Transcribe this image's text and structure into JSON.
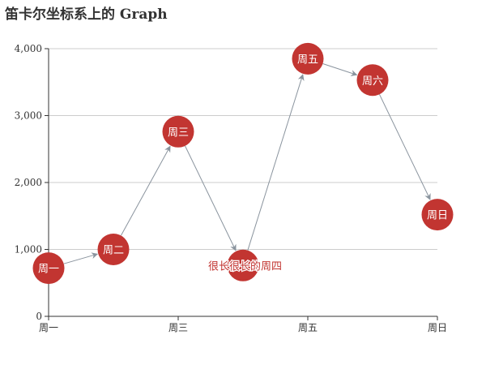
{
  "chart_data": {
    "type": "graph",
    "title": "笛卡尔坐标系上的 Graph",
    "categories": [
      "周一",
      "周二",
      "周三",
      "周四",
      "周五",
      "周六",
      "周日"
    ],
    "x_tick_labels": [
      "周一",
      "周三",
      "周五",
      "周日"
    ],
    "y_ticks": [
      0,
      1000,
      2000,
      3000,
      4000
    ],
    "y_tick_labels": [
      "0",
      "1,000",
      "2,000",
      "3,000",
      "4,000"
    ],
    "ylim": [
      0,
      4000
    ],
    "grid": true,
    "nodes": [
      {
        "category": "周一",
        "value": 720,
        "label": "周一",
        "label_position": "inside"
      },
      {
        "category": "周二",
        "value": 1000,
        "label": "周二",
        "label_position": "inside"
      },
      {
        "category": "周三",
        "value": 2760,
        "label": "周三",
        "label_position": "inside"
      },
      {
        "category": "周四",
        "value": 760,
        "label": "很长很长的周四",
        "label_position": "left"
      },
      {
        "category": "周五",
        "value": 3850,
        "label": "周五",
        "label_position": "inside"
      },
      {
        "category": "周六",
        "value": 3530,
        "label": "周六",
        "label_position": "inside"
      },
      {
        "category": "周日",
        "value": 1520,
        "label": "周日",
        "label_position": "inside"
      }
    ],
    "edges": [
      [
        0,
        1
      ],
      [
        1,
        2
      ],
      [
        2,
        3
      ],
      [
        3,
        4
      ],
      [
        4,
        5
      ],
      [
        5,
        6
      ]
    ],
    "colors": {
      "node": "#c23531",
      "edge": "#8a949e",
      "grid": "#cccccc",
      "axis": "#333333"
    }
  }
}
